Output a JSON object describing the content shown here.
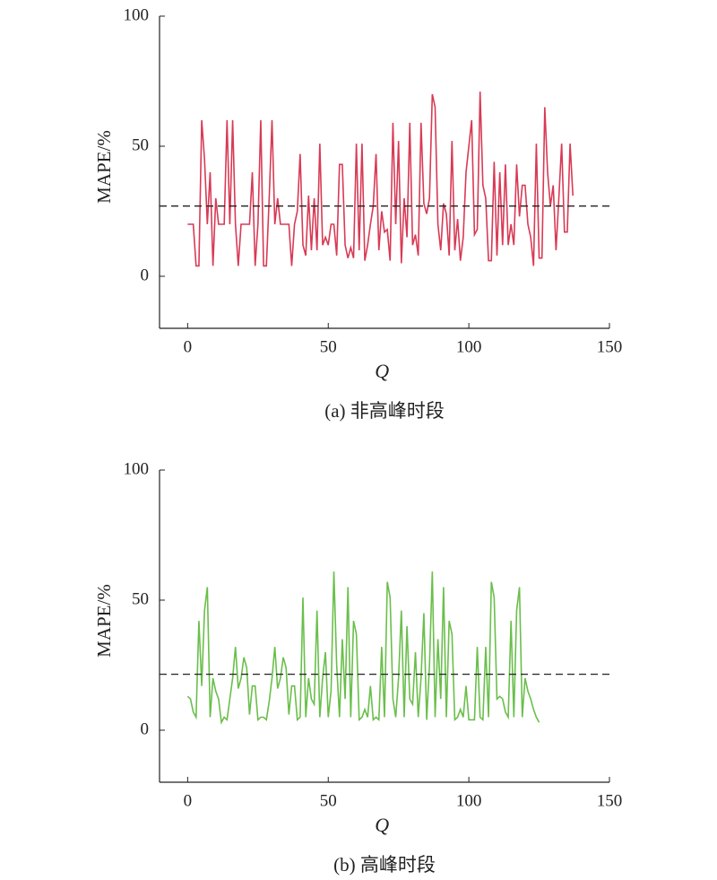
{
  "chart_data": [
    {
      "type": "line",
      "title": "(a) 非高峰时段",
      "xlabel": "Q",
      "ylabel": "MAPE/%",
      "xlim": [
        -10,
        150
      ],
      "ylim": [
        -20,
        100
      ],
      "xticks": [
        0,
        50,
        100,
        150
      ],
      "yticks": [
        0,
        50,
        100
      ],
      "reference_line": 27,
      "x": [
        0,
        1,
        2,
        3,
        4,
        5,
        6,
        7,
        8,
        9,
        10,
        11,
        12,
        13,
        14,
        15,
        16,
        17,
        18,
        19,
        20,
        21,
        22,
        23,
        24,
        25,
        26,
        27,
        28,
        29,
        30,
        31,
        32,
        33,
        34,
        35,
        36,
        37,
        38,
        39,
        40,
        41,
        42,
        43,
        44,
        45,
        46,
        47,
        48,
        49,
        50,
        51,
        52,
        53,
        54,
        55,
        56,
        57,
        58,
        59,
        60,
        61,
        62,
        63,
        64,
        65,
        66,
        67,
        68,
        69,
        70,
        71,
        72,
        73,
        74,
        75,
        76,
        77,
        78,
        79,
        80,
        81,
        82,
        83,
        84,
        85,
        86,
        87,
        88,
        89,
        90,
        91,
        92,
        93,
        94,
        95,
        96,
        97,
        98,
        99,
        100,
        101,
        102,
        103,
        104,
        105,
        106,
        107,
        108,
        109,
        110,
        111,
        112,
        113,
        114,
        115,
        116,
        117,
        118,
        119,
        120,
        121,
        122,
        123,
        124,
        125,
        126,
        127,
        128,
        129,
        130,
        131,
        132,
        133,
        134,
        135,
        136,
        137
      ],
      "series": [
        {
          "name": "MAPE",
          "color": "#d83a55",
          "values": [
            20,
            20,
            20,
            4,
            4,
            60,
            45,
            20,
            40,
            4,
            30,
            20,
            20,
            20,
            60,
            20,
            60,
            20,
            4,
            20,
            20,
            20,
            20,
            40,
            4,
            20,
            60,
            4,
            4,
            30,
            60,
            20,
            30,
            20,
            20,
            20,
            20,
            4,
            20,
            25,
            47,
            12,
            8,
            31,
            10,
            30,
            10,
            51,
            12,
            15,
            12,
            20,
            20,
            8,
            43,
            43,
            12,
            7,
            11,
            7,
            51,
            10,
            51,
            6,
            12,
            20,
            27,
            47,
            10,
            25,
            17,
            18,
            6,
            59,
            20,
            52,
            5,
            30,
            15,
            59,
            12,
            16,
            8,
            59,
            28,
            24,
            30,
            70,
            65,
            20,
            10,
            28,
            24,
            8,
            52,
            10,
            22,
            6,
            15,
            40,
            50,
            60,
            16,
            18,
            71,
            35,
            30,
            6,
            6,
            44,
            8,
            40,
            12,
            43,
            12,
            20,
            12,
            43,
            23,
            35,
            35,
            20,
            15,
            4,
            51,
            7,
            7,
            65,
            40,
            27,
            35,
            10,
            30,
            51,
            17,
            17,
            51,
            31
          ]
        }
      ]
    },
    {
      "type": "line",
      "title": "(b) 高峰时段",
      "xlabel": "Q",
      "ylabel": "MAPE/%",
      "xlim": [
        -10,
        150
      ],
      "ylim": [
        -20,
        100
      ],
      "xticks": [
        0,
        50,
        100,
        150
      ],
      "yticks": [
        0,
        50,
        100
      ],
      "reference_line": 21.5,
      "x": [
        0,
        1,
        2,
        3,
        4,
        5,
        6,
        7,
        8,
        9,
        10,
        11,
        12,
        13,
        14,
        15,
        16,
        17,
        18,
        19,
        20,
        21,
        22,
        23,
        24,
        25,
        26,
        27,
        28,
        29,
        30,
        31,
        32,
        33,
        34,
        35,
        36,
        37,
        38,
        39,
        40,
        41,
        42,
        43,
        44,
        45,
        46,
        47,
        48,
        49,
        50,
        51,
        52,
        53,
        54,
        55,
        56,
        57,
        58,
        59,
        60,
        61,
        62,
        63,
        64,
        65,
        66,
        67,
        68,
        69,
        70,
        71,
        72,
        73,
        74,
        75,
        76,
        77,
        78,
        79,
        80,
        81,
        82,
        83,
        84,
        85,
        86,
        87,
        88,
        89,
        90,
        91,
        92,
        93,
        94,
        95,
        96,
        97,
        98,
        99,
        100,
        101,
        102,
        103,
        104,
        105,
        106,
        107,
        108,
        109,
        110,
        111,
        112,
        113,
        114,
        115,
        116,
        117,
        118,
        119,
        120,
        121,
        122,
        123,
        124,
        125
      ],
      "series": [
        {
          "name": "MAPE",
          "color": "#6abf4b",
          "values": [
            13,
            12,
            7,
            5,
            42,
            17,
            46,
            55,
            5,
            20,
            15,
            12,
            3,
            5,
            4,
            12,
            20,
            32,
            16,
            20,
            28,
            24,
            6,
            17,
            17,
            4,
            5,
            5,
            4,
            11,
            20,
            32,
            16,
            20,
            28,
            24,
            6,
            17,
            17,
            4,
            5,
            51,
            5,
            20,
            12,
            10,
            46,
            5,
            20,
            30,
            5,
            15,
            61,
            25,
            5,
            35,
            12,
            55,
            5,
            42,
            37,
            4,
            5,
            8,
            5,
            17,
            4,
            5,
            4,
            32,
            5,
            57,
            51,
            12,
            5,
            20,
            46,
            5,
            40,
            12,
            10,
            30,
            5,
            20,
            45,
            4,
            25,
            61,
            5,
            35,
            12,
            55,
            5,
            42,
            37,
            4,
            5,
            8,
            5,
            17,
            4,
            4,
            4,
            32,
            5,
            4,
            32,
            5,
            57,
            51,
            12,
            13,
            12,
            7,
            5,
            42,
            5,
            46,
            55,
            5,
            20,
            15,
            12,
            8,
            5,
            3
          ]
        }
      ]
    }
  ]
}
